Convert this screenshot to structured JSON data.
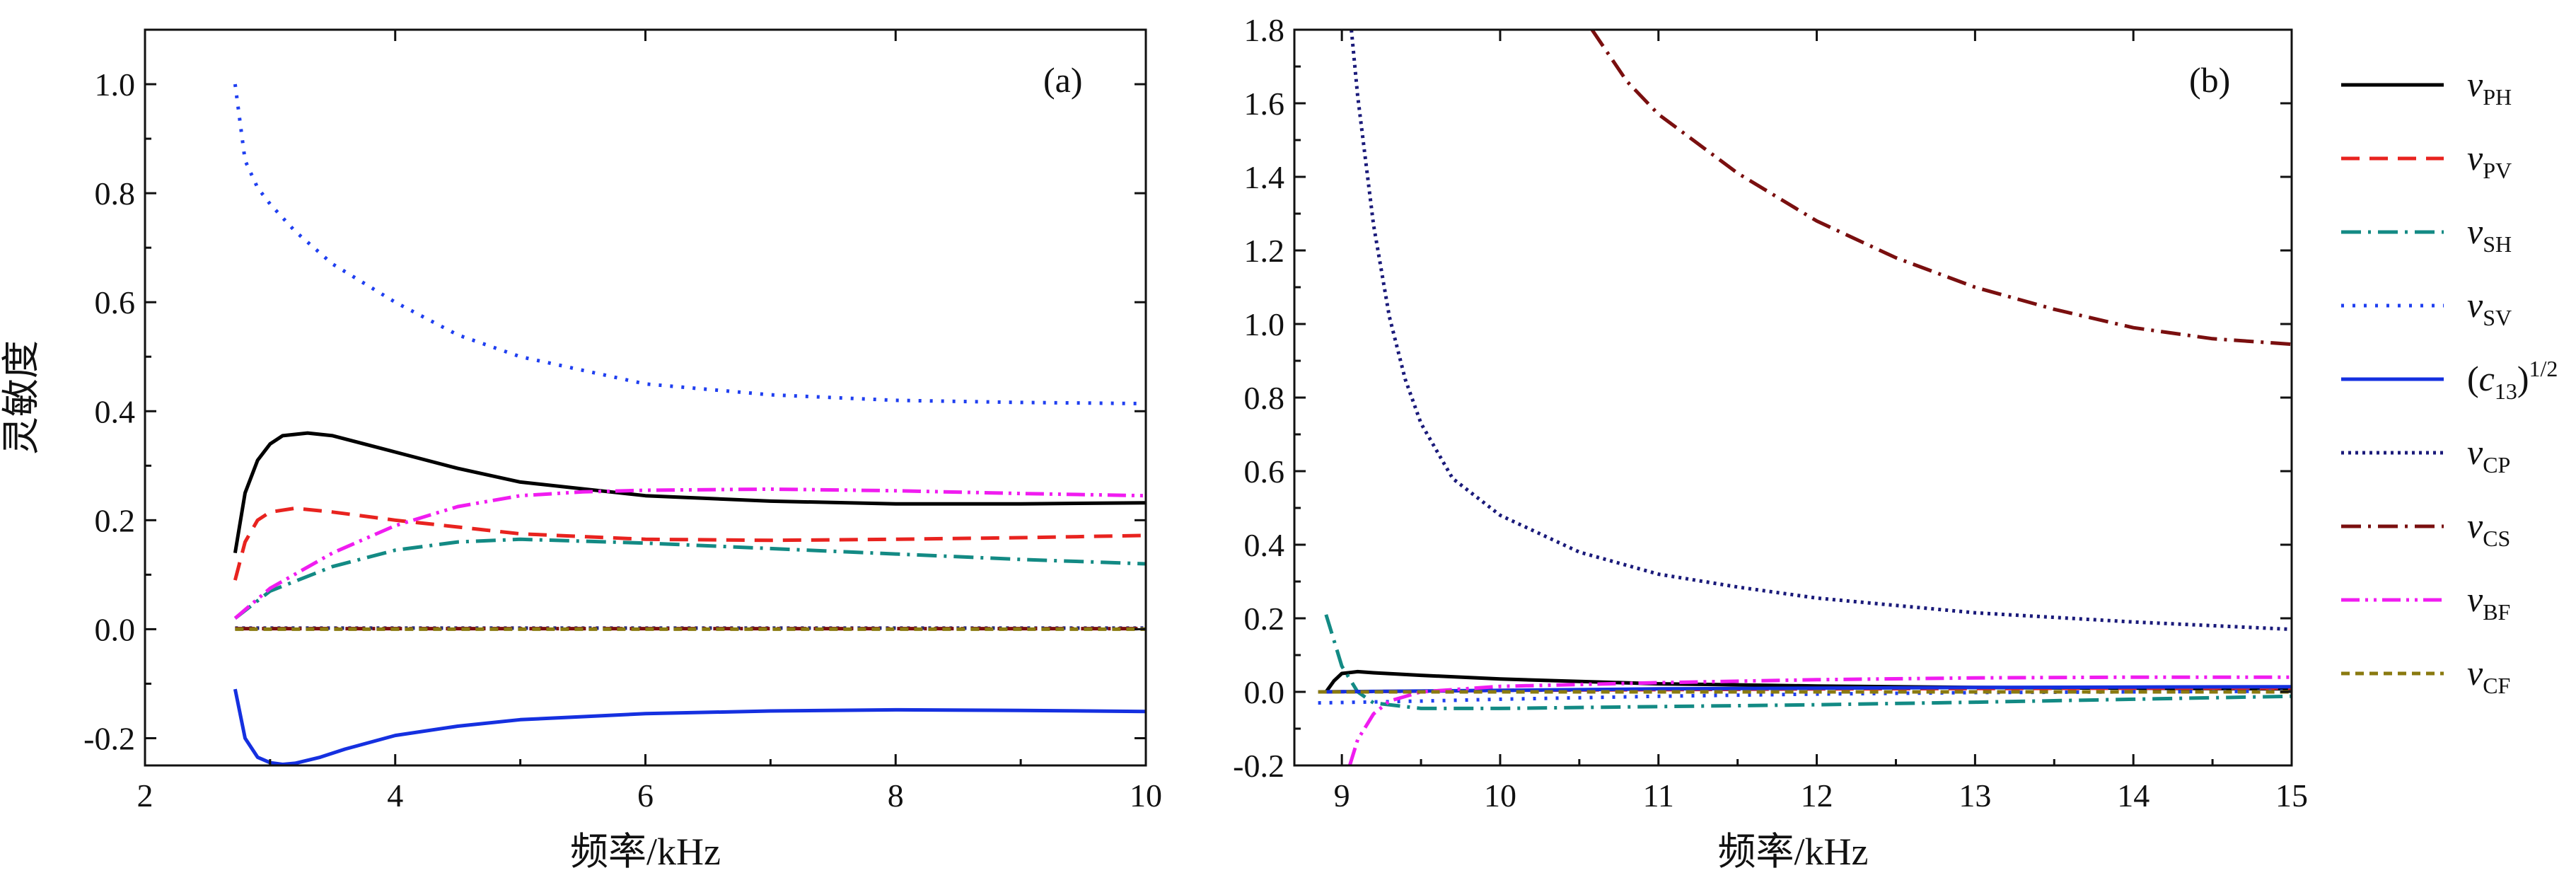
{
  "figure": {
    "panel_a_ylabel": "灵敏度",
    "xlabel": "频率/kHz"
  },
  "legend": [
    {
      "main": "v",
      "sub": "PH",
      "sup": "",
      "color": "#000000",
      "dash": "solid"
    },
    {
      "main": "v",
      "sub": "PV",
      "sup": "",
      "color": "#e8231f",
      "dash": "dashed"
    },
    {
      "main": "v",
      "sub": "SH",
      "sup": "",
      "color": "#138a84",
      "dash": "dashdot"
    },
    {
      "main": "v",
      "sub": "SV",
      "sup": "",
      "color": "#1f3ff0",
      "dash": "dotted"
    },
    {
      "main": "(c",
      "sub": "13",
      "sup": "1/2",
      "tail": ")",
      "color": "#1530e0",
      "dash": "solid"
    },
    {
      "main": "v",
      "sub": "CP",
      "sup": "",
      "color": "#1a1a7a",
      "dash": "densedot"
    },
    {
      "main": "v",
      "sub": "CS",
      "sup": "",
      "color": "#7a0f0f",
      "dash": "dashdot"
    },
    {
      "main": "v",
      "sub": "BF",
      "sup": "",
      "color": "#f01cf0",
      "dash": "dashdotdot"
    },
    {
      "main": "v",
      "sub": "CF",
      "sup": "",
      "color": "#8a7a10",
      "dash": "shortdash"
    }
  ],
  "chart_data": [
    {
      "type": "line",
      "panel_label": "(a)",
      "xlabel": "频率/kHz",
      "ylabel": "灵敏度",
      "xlim": [
        2,
        10
      ],
      "ylim": [
        -0.25,
        1.1
      ],
      "xticks": [
        2,
        4,
        6,
        8,
        10
      ],
      "yticks": [
        -0.2,
        0.0,
        0.2,
        0.4,
        0.6,
        0.8,
        1.0
      ],
      "ytick_labels": [
        "-0.2",
        "0.0",
        "0.2",
        "0.4",
        "0.6",
        "0.8",
        "1.0"
      ],
      "series": [
        {
          "name": "vPH",
          "x": [
            2.72,
            2.8,
            2.9,
            3.0,
            3.1,
            3.3,
            3.5,
            4.0,
            4.5,
            5.0,
            6.0,
            7.0,
            8.0,
            9.0,
            10.0
          ],
          "y": [
            0.14,
            0.25,
            0.31,
            0.34,
            0.355,
            0.36,
            0.355,
            0.325,
            0.295,
            0.27,
            0.245,
            0.235,
            0.23,
            0.23,
            0.232
          ]
        },
        {
          "name": "vPV",
          "x": [
            2.72,
            2.8,
            2.9,
            3.0,
            3.2,
            3.5,
            4.0,
            5.0,
            6.0,
            7.0,
            8.0,
            9.0,
            10.0
          ],
          "y": [
            0.09,
            0.16,
            0.2,
            0.215,
            0.222,
            0.215,
            0.2,
            0.175,
            0.165,
            0.163,
            0.165,
            0.168,
            0.172
          ]
        },
        {
          "name": "vSH",
          "x": [
            2.72,
            3.0,
            3.5,
            4.0,
            4.5,
            5.0,
            6.0,
            7.0,
            8.0,
            9.0,
            10.0
          ],
          "y": [
            0.02,
            0.07,
            0.115,
            0.145,
            0.16,
            0.165,
            0.158,
            0.148,
            0.138,
            0.128,
            0.12
          ]
        },
        {
          "name": "vSV",
          "x": [
            2.72,
            2.8,
            2.9,
            3.0,
            3.2,
            3.5,
            4.0,
            4.5,
            5.0,
            6.0,
            7.0,
            8.0,
            9.0,
            10.0
          ],
          "y": [
            1.0,
            0.86,
            0.81,
            0.78,
            0.73,
            0.67,
            0.6,
            0.54,
            0.5,
            0.45,
            0.43,
            0.42,
            0.416,
            0.414
          ]
        },
        {
          "name": "(c13)1/2",
          "x": [
            2.72,
            2.8,
            2.9,
            3.0,
            3.1,
            3.2,
            3.4,
            3.6,
            4.0,
            4.5,
            5.0,
            6.0,
            7.0,
            8.0,
            9.0,
            10.0
          ],
          "y": [
            -0.11,
            -0.2,
            -0.235,
            -0.245,
            -0.248,
            -0.246,
            -0.235,
            -0.22,
            -0.195,
            -0.178,
            -0.166,
            -0.155,
            -0.15,
            -0.148,
            -0.149,
            -0.151
          ]
        },
        {
          "name": "vCP",
          "x": [
            2.72,
            4.0,
            6.0,
            8.0,
            10.0
          ],
          "y": [
            0.002,
            0.002,
            0.002,
            0.002,
            0.002
          ]
        },
        {
          "name": "vCS",
          "x": [
            2.72,
            4.0,
            6.0,
            8.0,
            10.0
          ],
          "y": [
            0.001,
            0.001,
            0.001,
            0.001,
            0.001
          ]
        },
        {
          "name": "vBF",
          "x": [
            2.72,
            3.0,
            3.5,
            4.0,
            4.5,
            5.0,
            5.5,
            6.0,
            7.0,
            8.0,
            9.0,
            10.0
          ],
          "y": [
            0.02,
            0.075,
            0.14,
            0.19,
            0.225,
            0.245,
            0.252,
            0.255,
            0.257,
            0.254,
            0.249,
            0.245
          ]
        },
        {
          "name": "vCF",
          "x": [
            2.72,
            4.0,
            6.0,
            8.0,
            10.0
          ],
          "y": [
            0.0,
            0.0,
            0.0,
            0.0,
            0.0
          ]
        }
      ]
    },
    {
      "type": "line",
      "panel_label": "(b)",
      "xlabel": "频率/kHz",
      "ylabel": "",
      "xlim": [
        8.7,
        15
      ],
      "ylim": [
        -0.2,
        1.8
      ],
      "xticks": [
        9,
        10,
        11,
        12,
        13,
        14,
        15
      ],
      "yticks": [
        -0.2,
        0.0,
        0.2,
        0.4,
        0.6,
        0.8,
        1.0,
        1.2,
        1.4,
        1.6,
        1.8
      ],
      "ytick_labels": [
        "-0.2",
        "0.0",
        "0.2",
        "0.4",
        "0.6",
        "0.8",
        "1.0",
        "1.2",
        "1.4",
        "1.6",
        "1.8"
      ],
      "series": [
        {
          "name": "vPH",
          "x": [
            8.9,
            8.95,
            9.0,
            9.1,
            9.2,
            9.5,
            10.0,
            11.0,
            12.0,
            13.0,
            14.0,
            15.0
          ],
          "y": [
            0.0,
            0.03,
            0.05,
            0.055,
            0.052,
            0.045,
            0.035,
            0.022,
            0.016,
            0.012,
            0.01,
            0.008
          ]
        },
        {
          "name": "vPV",
          "x": [
            8.9,
            9.5,
            10.0,
            11.0,
            12.0,
            13.0,
            14.0,
            15.0
          ],
          "y": [
            0.0,
            0.002,
            0.004,
            0.006,
            0.008,
            0.009,
            0.01,
            0.01
          ]
        },
        {
          "name": "vSH",
          "x": [
            8.9,
            8.95,
            9.0,
            9.1,
            9.2,
            9.5,
            10.0,
            11.0,
            12.0,
            13.0,
            14.0,
            15.0
          ],
          "y": [
            0.21,
            0.14,
            0.07,
            0.0,
            -0.03,
            -0.045,
            -0.045,
            -0.04,
            -0.035,
            -0.028,
            -0.02,
            -0.012
          ]
        },
        {
          "name": "vSV",
          "x": [
            8.85,
            9.5,
            10.0,
            11.0,
            12.0,
            13.0,
            14.0,
            15.0
          ],
          "y": [
            -0.03,
            -0.025,
            -0.02,
            -0.012,
            -0.006,
            -0.002,
            0.0,
            0.002
          ]
        },
        {
          "name": "(c13)1/2",
          "x": [
            8.85,
            10.0,
            11.0,
            12.0,
            13.0,
            14.0,
            15.0
          ],
          "y": [
            0.0,
            0.004,
            0.008,
            0.01,
            0.012,
            0.013,
            0.014
          ]
        },
        {
          "name": "vCP",
          "x": [
            9.06,
            9.1,
            9.2,
            9.3,
            9.4,
            9.5,
            9.7,
            10.0,
            10.5,
            11.0,
            11.5,
            12.0,
            13.0,
            14.0,
            15.0
          ],
          "y": [
            1.8,
            1.62,
            1.27,
            1.02,
            0.85,
            0.73,
            0.58,
            0.48,
            0.38,
            0.32,
            0.285,
            0.255,
            0.215,
            0.19,
            0.17
          ]
        },
        {
          "name": "vCS",
          "x": [
            10.58,
            10.8,
            11.0,
            11.5,
            12.0,
            12.5,
            13.0,
            13.5,
            14.0,
            14.5,
            15.0
          ],
          "y": [
            1.8,
            1.66,
            1.57,
            1.41,
            1.28,
            1.18,
            1.1,
            1.04,
            0.99,
            0.96,
            0.945
          ]
        },
        {
          "name": "vBF",
          "x": [
            9.05,
            9.1,
            9.2,
            9.3,
            9.5,
            10.0,
            11.0,
            12.0,
            13.0,
            14.0,
            15.0
          ],
          "y": [
            -0.2,
            -0.13,
            -0.06,
            -0.025,
            0.0,
            0.015,
            0.025,
            0.033,
            0.038,
            0.04,
            0.04
          ]
        },
        {
          "name": "vCF",
          "x": [
            8.85,
            10.0,
            12.0,
            15.0
          ],
          "y": [
            0.0,
            0.0,
            0.0,
            0.0
          ]
        }
      ]
    }
  ]
}
